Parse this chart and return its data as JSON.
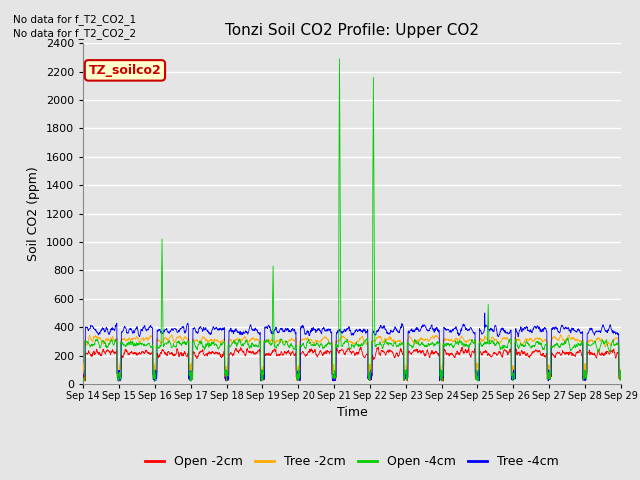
{
  "title": "Tonzi Soil CO2 Profile: Upper CO2",
  "ylabel": "Soil CO2 (ppm)",
  "xlabel": "Time",
  "no_data_text_1": "No data for f_T2_CO2_1",
  "no_data_text_2": "No data for f_T2_CO2_2",
  "legend_label": "TZ_soilco2",
  "ylim": [
    0,
    2400
  ],
  "yticks": [
    0,
    200,
    400,
    600,
    800,
    1000,
    1200,
    1400,
    1600,
    1800,
    2000,
    2200,
    2400
  ],
  "xticklabels": [
    "Sep 14",
    "Sep 15",
    "Sep 16",
    "Sep 17",
    "Sep 18",
    "Sep 19",
    "Sep 20",
    "Sep 21",
    "Sep 22",
    "Sep 23",
    "Sep 24",
    "Sep 25",
    "Sep 26",
    "Sep 27",
    "Sep 28",
    "Sep 29"
  ],
  "series_labels": [
    "Open -2cm",
    "Tree -2cm",
    "Open -4cm",
    "Tree -4cm"
  ],
  "series_colors": [
    "#ff0000",
    "#ffaa00",
    "#00cc00",
    "#0000ff"
  ],
  "background_color": "#e5e5e5",
  "plot_bg_color": "#e5e5e5",
  "grid_color": "#ffffff",
  "n_points": 2000
}
